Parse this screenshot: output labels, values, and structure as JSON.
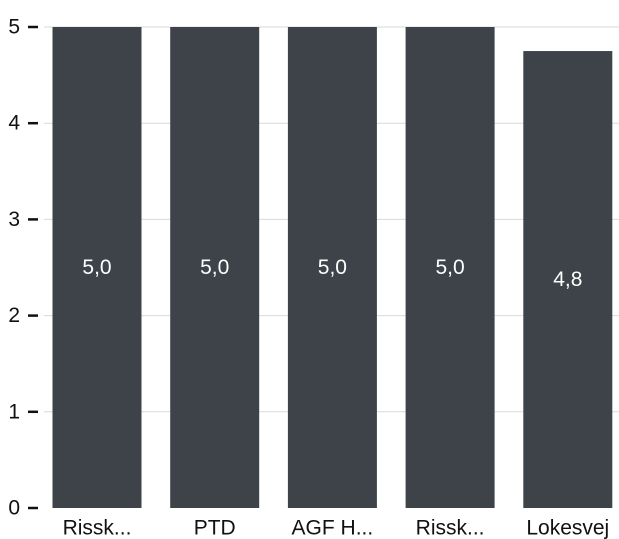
{
  "chart_data": {
    "type": "bar",
    "categories": [
      "Rissk...",
      "PTD",
      "AGF H...",
      "Rissk...",
      "Lokesvej"
    ],
    "values": [
      5.0,
      5.0,
      5.0,
      5.0,
      4.75
    ],
    "value_labels": [
      "5,0",
      "5,0",
      "5,0",
      "5,0",
      "4,8"
    ],
    "title": "",
    "xlabel": "",
    "ylabel": "",
    "ylim": [
      0,
      5
    ],
    "y_ticks": [
      0,
      1,
      2,
      3,
      4,
      5
    ],
    "y_tick_labels": [
      "0",
      "1",
      "2",
      "3",
      "4",
      "5"
    ],
    "grid": true,
    "legend": "none",
    "colors": {
      "bar": "#3e434a",
      "grid": "#d9d9d9",
      "tick_mark": "#111111",
      "value_label": "#ffffff",
      "axis_text": "#111111"
    }
  }
}
